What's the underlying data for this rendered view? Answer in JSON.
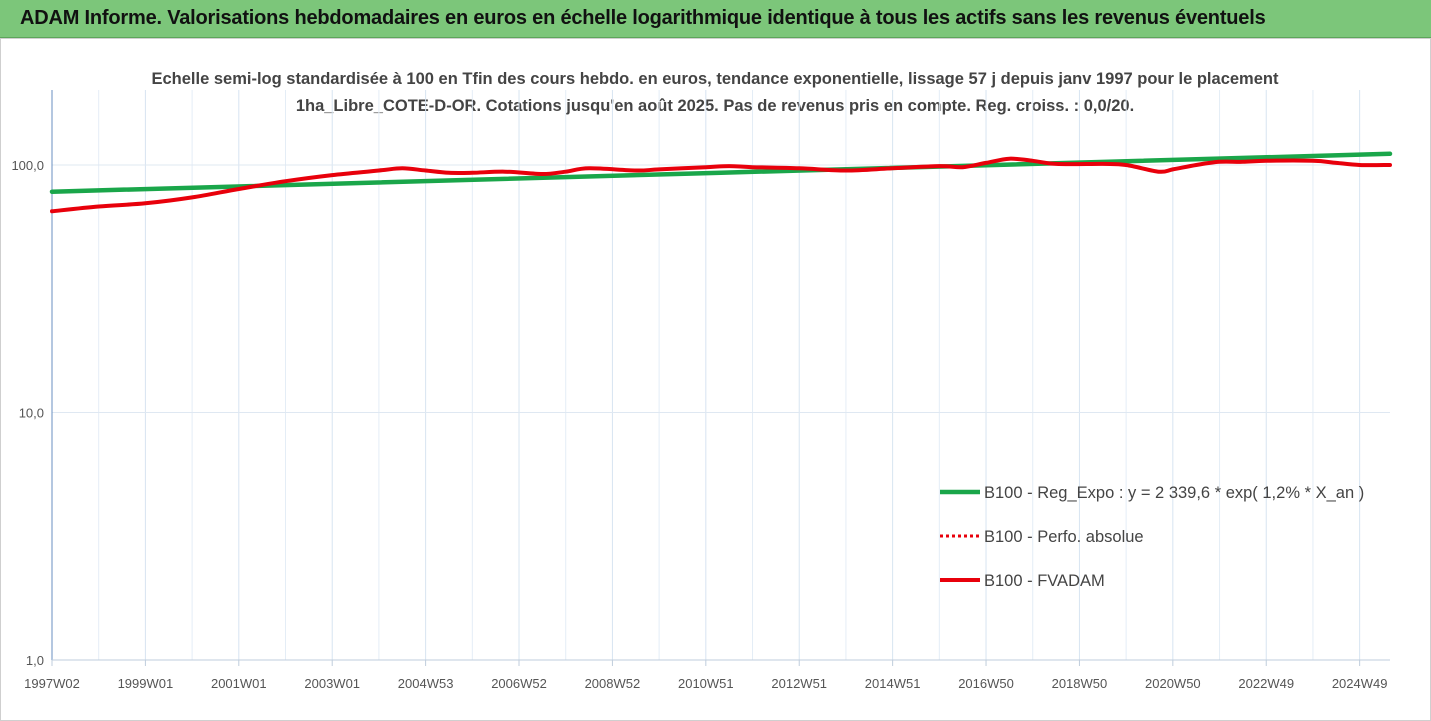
{
  "header": {
    "title": "ADAM Informe. Valorisations hebdomadaires en euros en échelle logarithmique identique à tous les actifs sans les revenus éventuels"
  },
  "colors": {
    "header_bg": "#7cc67a",
    "regression": "#1aa64a",
    "fvadam": "#e8000b",
    "perfo": "#e8000b",
    "corner": "#f5b400"
  },
  "chart_data": {
    "type": "line",
    "title": "Echelle semi-log standardisée à 100 en Tfin des cours hebdo. en euros, tendance exponentielle, lissage 57 j depuis janv 1997 pour le placement 1ha_Libre_COTE-D-OR. Cotations jusqu'en août 2025.  Pas de revenus pris en compte. Reg. croiss. : 0,0/20.",
    "y_scale": "log",
    "ylim": [
      1,
      200
    ],
    "y_ticks": [
      {
        "value": 1,
        "label": "1,0"
      },
      {
        "value": 10,
        "label": "10,0"
      },
      {
        "value": 100,
        "label": "100,0"
      }
    ],
    "x_range": [
      1997.0,
      2025.65
    ],
    "x_ticks": [
      {
        "label": "1997W02",
        "x": 1997.0
      },
      {
        "label": "1999W01",
        "x": 1999.0
      },
      {
        "label": "2001W01",
        "x": 2001.0
      },
      {
        "label": "2003W01",
        "x": 2003.0
      },
      {
        "label": "2004W53",
        "x": 2005.0
      },
      {
        "label": "2006W52",
        "x": 2007.0
      },
      {
        "label": "2008W52",
        "x": 2009.0
      },
      {
        "label": "2010W51",
        "x": 2011.0
      },
      {
        "label": "2012W51",
        "x": 2013.0
      },
      {
        "label": "2014W51",
        "x": 2015.0
      },
      {
        "label": "2016W50",
        "x": 2017.0
      },
      {
        "label": "2018W50",
        "x": 2019.0
      },
      {
        "label": "2020W50",
        "x": 2021.0
      },
      {
        "label": "2022W49",
        "x": 2023.0
      },
      {
        "label": "2024W49",
        "x": 2025.0
      }
    ],
    "grid": true,
    "legend_position": "bottom-right",
    "series": [
      {
        "name": "B100 - Reg_Expo : y = 2 339,6 * exp( 1,2% *  X_an )",
        "style": "solid-green",
        "points": [
          [
            1997.0,
            78
          ],
          [
            2025.65,
            111
          ]
        ]
      },
      {
        "name": "B100 - Perfo. absolue",
        "style": "dotted-red",
        "points": []
      },
      {
        "name": "B100 - FVADAM",
        "style": "solid-red",
        "points": [
          [
            1997.0,
            65
          ],
          [
            1998.0,
            68
          ],
          [
            1999.0,
            70
          ],
          [
            2000.0,
            74
          ],
          [
            2001.0,
            80
          ],
          [
            2002.0,
            86
          ],
          [
            2003.0,
            91
          ],
          [
            2004.0,
            95
          ],
          [
            2004.5,
            97
          ],
          [
            2005.0,
            95
          ],
          [
            2005.5,
            93
          ],
          [
            2006.0,
            93
          ],
          [
            2006.7,
            94
          ],
          [
            2007.5,
            92
          ],
          [
            2008.0,
            94
          ],
          [
            2008.5,
            97
          ],
          [
            2009.5,
            95
          ],
          [
            2010.0,
            96
          ],
          [
            2011.0,
            98
          ],
          [
            2011.5,
            99
          ],
          [
            2012.0,
            98
          ],
          [
            2013.0,
            97
          ],
          [
            2014.0,
            95
          ],
          [
            2015.0,
            97
          ],
          [
            2016.0,
            99
          ],
          [
            2016.5,
            98
          ],
          [
            2017.0,
            102
          ],
          [
            2017.5,
            106
          ],
          [
            2018.0,
            104
          ],
          [
            2018.5,
            101
          ],
          [
            2019.5,
            101
          ],
          [
            2020.0,
            100
          ],
          [
            2020.7,
            94
          ],
          [
            2021.0,
            96
          ],
          [
            2021.5,
            100
          ],
          [
            2022.0,
            103
          ],
          [
            2022.5,
            103
          ],
          [
            2023.0,
            104
          ],
          [
            2024.0,
            104
          ],
          [
            2024.5,
            102
          ],
          [
            2025.0,
            100
          ],
          [
            2025.65,
            100
          ]
        ]
      }
    ]
  }
}
